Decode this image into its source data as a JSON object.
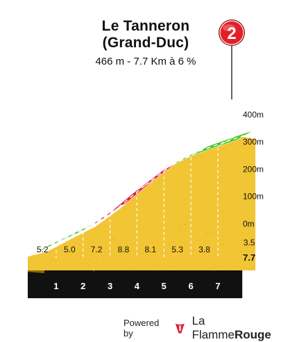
{
  "header": {
    "title_line1": "Le Tanneron",
    "title_line2": "(Grand-Duc)",
    "subtitle": "466 m - 7.7 Km à 6 %"
  },
  "marker": {
    "number": "2",
    "color": "#e41f26"
  },
  "footer": {
    "powered_by": "Powered by",
    "brand_part1": "La Flamme",
    "brand_part2": "Rouge",
    "logo_icon": "flame-1-icon"
  },
  "colors": {
    "fill": "#f2c535",
    "side": "#8a6a10",
    "base": "#111111",
    "gradient_bands": {
      "lt_6": "#4ec72e",
      "6_to_7": "#1f4f8c",
      "7_to_9": "#e0203b",
      "gt_9": "#111111"
    }
  },
  "chart_data": {
    "type": "area",
    "title": "Le Tanneron (Grand-Duc)",
    "xlabel": "",
    "ylabel": "",
    "x_unit": "km",
    "y_unit": "m",
    "total_distance_km": 7.7,
    "total_gain_m": 466,
    "average_gradient_pct": 6,
    "y_tick_labels": [
      "0m",
      "100m",
      "200m",
      "300m",
      "400m"
    ],
    "y_ticks": [
      0,
      100,
      200,
      300,
      400
    ],
    "x_tick_labels": [
      "1",
      "2",
      "3",
      "4",
      "5",
      "6",
      "7"
    ],
    "x_end_label": "7.7",
    "km_segments": [
      {
        "start_km": 0,
        "end_km": 1,
        "gradient_pct": 5.2,
        "label": "5.2"
      },
      {
        "start_km": 1,
        "end_km": 2,
        "gradient_pct": 5.0,
        "label": "5.0"
      },
      {
        "start_km": 2,
        "end_km": 3,
        "gradient_pct": 7.2,
        "label": "7.2"
      },
      {
        "start_km": 3,
        "end_km": 4,
        "gradient_pct": 8.8,
        "label": "8.8"
      },
      {
        "start_km": 4,
        "end_km": 5,
        "gradient_pct": 8.1,
        "label": "8.1"
      },
      {
        "start_km": 5,
        "end_km": 6,
        "gradient_pct": 5.3,
        "label": "5.3"
      },
      {
        "start_km": 6,
        "end_km": 7,
        "gradient_pct": 3.8,
        "label": "3.8"
      },
      {
        "start_km": 7,
        "end_km": 7.7,
        "gradient_pct": 3.5,
        "label": "3.5"
      }
    ]
  }
}
